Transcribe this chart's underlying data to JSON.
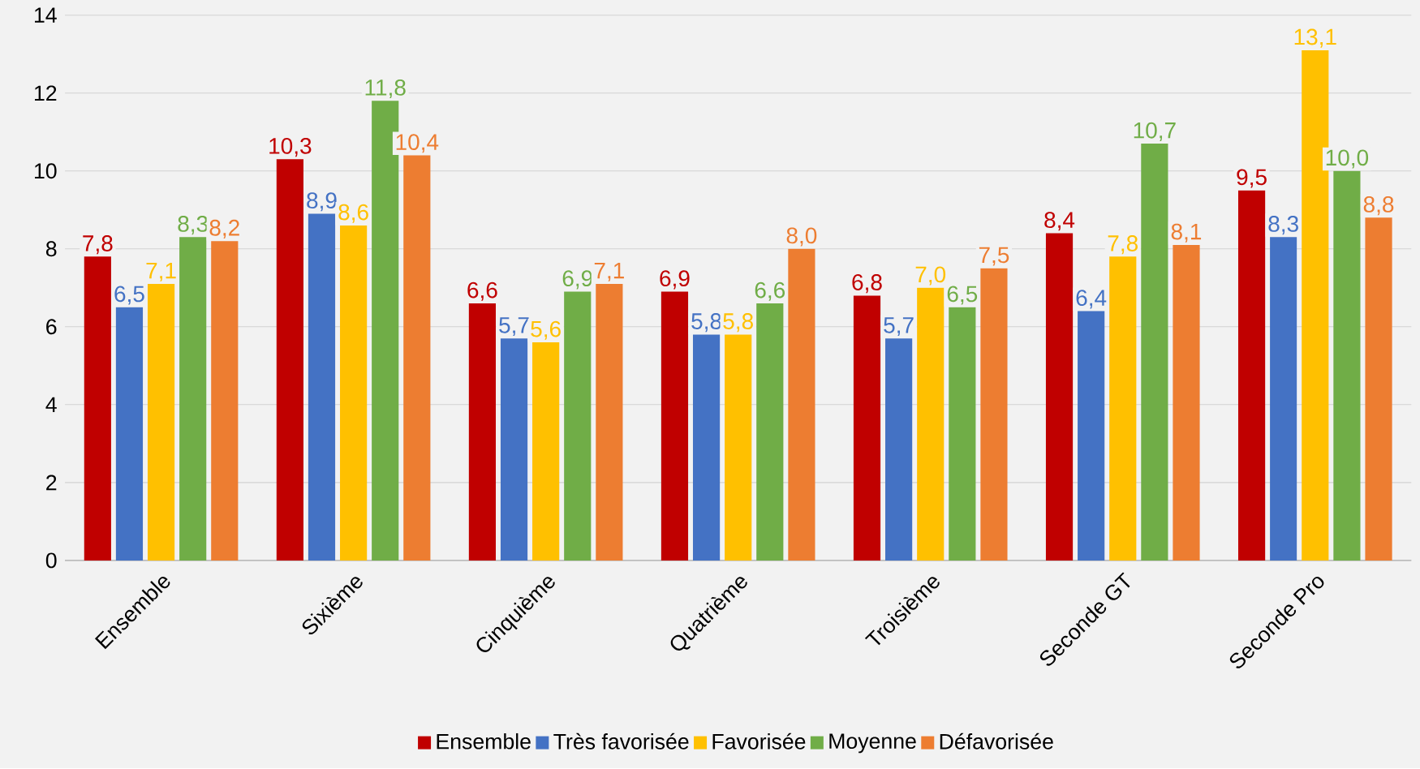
{
  "chart_data": {
    "type": "bar",
    "categories": [
      "Ensemble",
      "Sixième",
      "Cinquième",
      "Quatrième",
      "Troisième",
      "Seconde GT",
      "Seconde Pro"
    ],
    "series": [
      {
        "name": "Ensemble",
        "color": "#c00000",
        "values": [
          7.8,
          10.3,
          6.6,
          6.9,
          6.8,
          8.4,
          9.5
        ],
        "value_labels": [
          "7,8",
          "10,3",
          "6,6",
          "6,9",
          "6,8",
          "8,4",
          "9,5"
        ]
      },
      {
        "name": "Très favorisée",
        "color": "#4472c4",
        "values": [
          6.5,
          8.9,
          5.7,
          5.8,
          5.7,
          6.4,
          8.3
        ],
        "value_labels": [
          "6,5",
          "8,9",
          "5,7",
          "5,8",
          "5,7",
          "6,4",
          "8,3"
        ]
      },
      {
        "name": "Favorisée",
        "color": "#ffc000",
        "values": [
          7.1,
          8.6,
          5.6,
          5.8,
          7.0,
          7.8,
          13.1
        ],
        "value_labels": [
          "7,1",
          "8,6",
          "5,6",
          "5,8",
          "7,0",
          "7,8",
          "13,1"
        ]
      },
      {
        "name": "Moyenne",
        "color": "#70ad47",
        "values": [
          8.3,
          11.8,
          6.9,
          6.6,
          6.5,
          10.7,
          10.0
        ],
        "value_labels": [
          "8,3",
          "11,8",
          "6,9",
          "6,6",
          "6,5",
          "10,7",
          "10,0"
        ]
      },
      {
        "name": "Défavorisée",
        "color": "#ed7d31",
        "values": [
          8.2,
          10.4,
          7.1,
          8.0,
          7.5,
          8.1,
          8.8
        ],
        "value_labels": [
          "8,2",
          "10,4",
          "7,1",
          "8,0",
          "7,5",
          "8,1",
          "8,8"
        ]
      }
    ],
    "ylim": [
      0,
      14
    ],
    "yticks": [
      0,
      2,
      4,
      6,
      8,
      10,
      12,
      14
    ],
    "grid": "y",
    "legend": "bottom"
  }
}
